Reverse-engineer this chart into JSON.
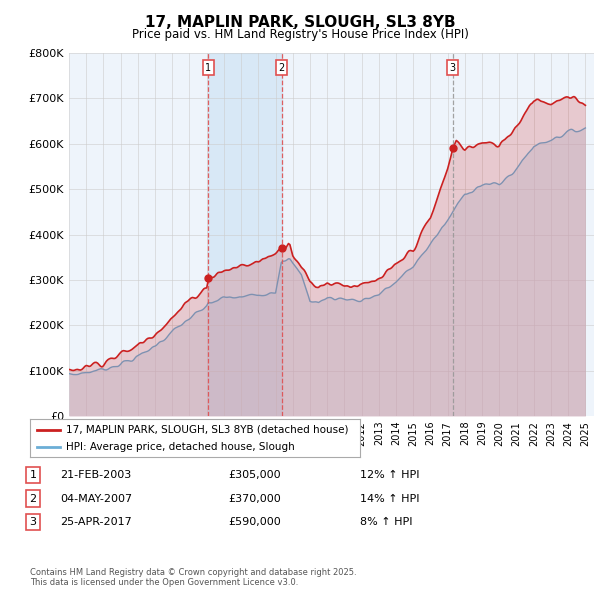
{
  "title": "17, MAPLIN PARK, SLOUGH, SL3 8YB",
  "subtitle": "Price paid vs. HM Land Registry's House Price Index (HPI)",
  "hpi_label": "HPI: Average price, detached house, Slough",
  "property_label": "17, MAPLIN PARK, SLOUGH, SL3 8YB (detached house)",
  "ylim": [
    0,
    800000
  ],
  "yticks": [
    0,
    100000,
    200000,
    300000,
    400000,
    500000,
    600000,
    700000,
    800000
  ],
  "ytick_labels": [
    "£0",
    "£100K",
    "£200K",
    "£300K",
    "£400K",
    "£500K",
    "£600K",
    "£700K",
    "£800K"
  ],
  "transactions": [
    {
      "num": 1,
      "date": "21-FEB-2003",
      "price": 305000,
      "hpi_pct": "12%",
      "year_x": 2003.1
    },
    {
      "num": 2,
      "date": "04-MAY-2007",
      "price": 370000,
      "hpi_pct": "14%",
      "year_x": 2007.35
    },
    {
      "num": 3,
      "date": "25-APR-2017",
      "price": 590000,
      "hpi_pct": "8%",
      "year_x": 2017.3
    }
  ],
  "hpi_color": "#6baed6",
  "hpi_fill_color": "#c6dbef",
  "price_color": "#cb2020",
  "vline_color_red": "#e05050",
  "vline_color_gray": "#999999",
  "background_color": "#ffffff",
  "chart_bg_color": "#eef4fb",
  "grid_color": "#cccccc",
  "xlim": [
    1995,
    2025.5
  ],
  "xticks": [
    1995,
    1996,
    1997,
    1998,
    1999,
    2000,
    2001,
    2002,
    2003,
    2004,
    2005,
    2006,
    2007,
    2008,
    2009,
    2010,
    2011,
    2012,
    2013,
    2014,
    2015,
    2016,
    2017,
    2018,
    2019,
    2020,
    2021,
    2022,
    2023,
    2024,
    2025
  ],
  "footer": "Contains HM Land Registry data © Crown copyright and database right 2025.\nThis data is licensed under the Open Government Licence v3.0."
}
